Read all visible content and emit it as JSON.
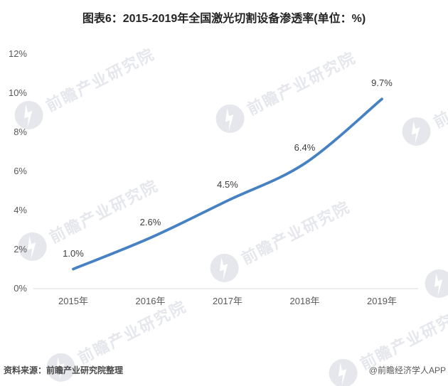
{
  "chart_data": {
    "type": "line",
    "title": "图表6：2015-2019年全国激光切割设备渗透率(单位：%)",
    "categories": [
      "2015年",
      "2016年",
      "2017年",
      "2018年",
      "2019年"
    ],
    "values": [
      1.0,
      2.6,
      4.5,
      6.4,
      9.7
    ],
    "point_labels": [
      "1.0%",
      "2.6%",
      "4.5%",
      "6.4%",
      "9.7%"
    ],
    "y_ticks": [
      0,
      2,
      4,
      6,
      8,
      10,
      12
    ],
    "y_tick_labels": [
      "0%",
      "2%",
      "4%",
      "6%",
      "8%",
      "10%",
      "12%"
    ],
    "ylim": [
      0,
      12
    ],
    "xlabel": "",
    "ylabel": "",
    "unit": "%",
    "grid": false,
    "legend": "none",
    "smooth": true,
    "line_color": "#4681c4",
    "axis_line_color": "#d9d9d9"
  },
  "footer": {
    "source": "资料来源：前瞻产业研究院整理",
    "credit": "@前瞻经济学人APP"
  },
  "watermark": {
    "text": "前瞻产业研究院",
    "logo": "qianzhan-logo-icon"
  }
}
